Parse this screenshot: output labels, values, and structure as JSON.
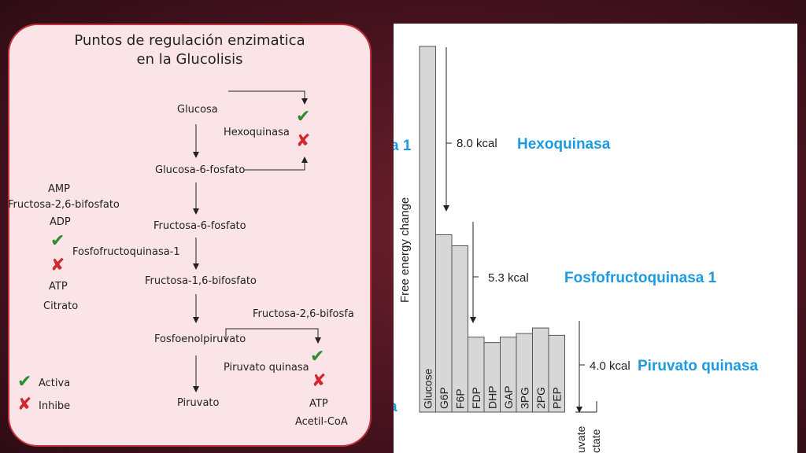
{
  "panel": {
    "title_line1": "Puntos de regulación enzimatica",
    "title_line2": "en la Glucolisis",
    "pathway": {
      "glucosa": "Glucosa",
      "hexoquinasa": "Hexoquinasa",
      "glucosa6p": "Glucosa-6-fosfato",
      "fructosa6p": "Fructosa-6-fosfato",
      "pfk": "Fosfofructoquinasa-1",
      "fructosa16bp": "Fructosa-1,6-bifosfato",
      "fructosa26bp_short": "Fructosa-2,6-bifosfa",
      "pep": "Fosfoenolpiruvato",
      "piruvato_quinasa": "Piruvato quinasa",
      "piruvato": "Piruvato"
    },
    "pfk_activators": [
      "AMP",
      "Fructosa-2,6-bifosfato",
      "ADP"
    ],
    "pfk_inhibitors": [
      "ATP",
      "Citrato"
    ],
    "pk_inhibitors": [
      "ATP",
      "Acetil-CoA"
    ],
    "legend": {
      "activa": "Activa",
      "inhibe": "Inhibe"
    },
    "colors": {
      "activate": "#2e8b2e",
      "inhibit": "#d0282c",
      "border": "#c2303a",
      "fill": "#fbe4e8"
    }
  },
  "chart_data": {
    "type": "bar",
    "ylabel": "Free energy change",
    "categories": [
      "Glucose",
      "G6P",
      "F6P",
      "FDP",
      "DHP",
      "GAP",
      "3PG",
      "2PG",
      "PEP"
    ],
    "values": [
      100,
      48.5,
      45.5,
      20.5,
      19,
      20.5,
      21.5,
      23,
      21
    ],
    "bottom_labels_cut": [
      "uvate",
      "ctate"
    ],
    "annotations": [
      {
        "from": "Glucose",
        "to": "G6P",
        "energy": "8.0 kcal",
        "enzyme": "Hexoquinasa"
      },
      {
        "from": "F6P",
        "to": "FDP",
        "energy": "5.3 kcal",
        "enzyme": "Fosfofructoquinasa 1"
      },
      {
        "from": "PEP",
        "to": "Pyruvate",
        "energy": "4.0 kcal",
        "enzyme": "Piruvato quinasa"
      }
    ],
    "left_edge_fragments": [
      "a 1",
      "a"
    ],
    "colors": {
      "bar": "#d7d7d7",
      "enzyme_label": "#1e9be0"
    }
  }
}
